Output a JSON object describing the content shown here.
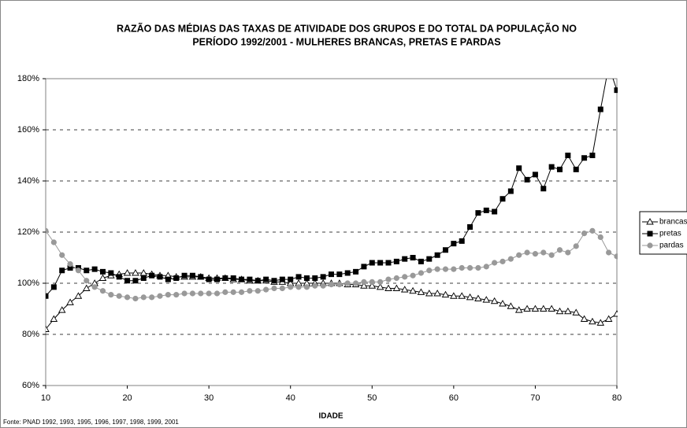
{
  "chart_data": {
    "type": "line",
    "title": [
      "RAZÃO DAS  MÉDIAS DAS TAXAS DE ATIVIDADE DOS GRUPOS E DO TOTAL DA POPULAÇÃO NO",
      "PERÍODO 1992/2001 - MULHERES BRANCAS, PRETAS E PARDAS"
    ],
    "x_label": "IDADE",
    "source": "Fonte: PNAD 1992, 1993, 1995, 1996, 1997, 1998, 1999, 2001",
    "x": [
      10,
      11,
      12,
      13,
      14,
      15,
      16,
      17,
      18,
      19,
      20,
      21,
      22,
      23,
      24,
      25,
      26,
      27,
      28,
      29,
      30,
      31,
      32,
      33,
      34,
      35,
      36,
      37,
      38,
      39,
      40,
      41,
      42,
      43,
      44,
      45,
      46,
      47,
      48,
      49,
      50,
      51,
      52,
      53,
      54,
      55,
      56,
      57,
      58,
      59,
      60,
      61,
      62,
      63,
      64,
      65,
      66,
      67,
      68,
      69,
      70,
      71,
      72,
      73,
      74,
      75,
      76,
      77,
      78,
      79,
      80
    ],
    "xlim": [
      10,
      80
    ],
    "xticks": [
      10,
      20,
      30,
      40,
      50,
      60,
      70,
      80
    ],
    "ylim": [
      60,
      180
    ],
    "yticks": [
      {
        "value": 60,
        "label": "60%"
      },
      {
        "value": 80,
        "label": "80%"
      },
      {
        "value": 100,
        "label": "100%"
      },
      {
        "value": 120,
        "label": "120%"
      },
      {
        "value": 140,
        "label": "140%"
      },
      {
        "value": 160,
        "label": "160%"
      },
      {
        "value": 180,
        "label": "180%"
      }
    ],
    "grid": true,
    "legend": "right",
    "series": [
      {
        "name": "brancas",
        "color": "#000000",
        "marker": "triangle",
        "values": [
          82,
          86,
          89.5,
          92.5,
          95,
          98,
          100,
          102,
          103,
          103.5,
          104,
          104,
          104,
          103.5,
          103,
          103,
          102.5,
          102.5,
          102.5,
          102.5,
          102,
          102,
          102,
          101.5,
          101.5,
          101,
          101,
          101,
          100.5,
          100.5,
          100,
          100,
          100,
          100,
          100,
          100,
          100,
          99.5,
          99.5,
          99,
          99,
          98.5,
          98,
          98,
          97.5,
          97,
          96.5,
          96,
          96,
          95.5,
          95,
          95,
          94.5,
          94,
          93.5,
          93,
          92,
          91,
          89.5,
          90,
          90,
          90,
          90,
          89,
          89,
          88.5,
          86,
          85,
          84.5,
          86,
          88
        ]
      },
      {
        "name": "pretas",
        "color": "#000000",
        "marker": "square",
        "values": [
          95,
          98.5,
          105,
          106,
          106,
          105,
          105.5,
          104.5,
          104,
          102.5,
          101,
          101,
          102,
          103,
          102.5,
          101.5,
          102,
          103,
          103,
          102.5,
          101.5,
          101.5,
          102,
          102,
          101.5,
          101.5,
          101,
          101.5,
          101,
          101.5,
          101.5,
          102.5,
          102,
          102,
          102.5,
          103.5,
          103.5,
          104,
          104.5,
          106.5,
          108,
          108,
          108,
          108.5,
          109.5,
          110,
          108.5,
          109.5,
          111,
          113,
          115.5,
          116.5,
          122,
          127.5,
          128.5,
          128,
          133,
          136,
          145,
          140.5,
          142.5,
          137,
          145.5,
          144.5,
          150,
          144.5,
          149,
          150,
          168,
          185,
          175.5
        ]
      },
      {
        "name": "pardas",
        "color": "#999999",
        "marker": "circle",
        "values": [
          120.5,
          116,
          111,
          107.5,
          105,
          101,
          98.5,
          97,
          95.5,
          95,
          94.5,
          94,
          94.5,
          94.5,
          95,
          95.5,
          95.5,
          96,
          96,
          96,
          96,
          96,
          96.5,
          96.5,
          96.5,
          97,
          97,
          97.5,
          98,
          98,
          98.5,
          98.5,
          98.5,
          99,
          99,
          99.5,
          99.5,
          100,
          100,
          100.5,
          100.5,
          100.5,
          101.5,
          102,
          102.5,
          103,
          104,
          105,
          105.5,
          105.5,
          105.5,
          106,
          106,
          106,
          106.5,
          108,
          108.5,
          109.5,
          111,
          112,
          111.5,
          112,
          111,
          113,
          112,
          114.5,
          119.5,
          120.5,
          118,
          112,
          110.5
        ]
      }
    ]
  }
}
